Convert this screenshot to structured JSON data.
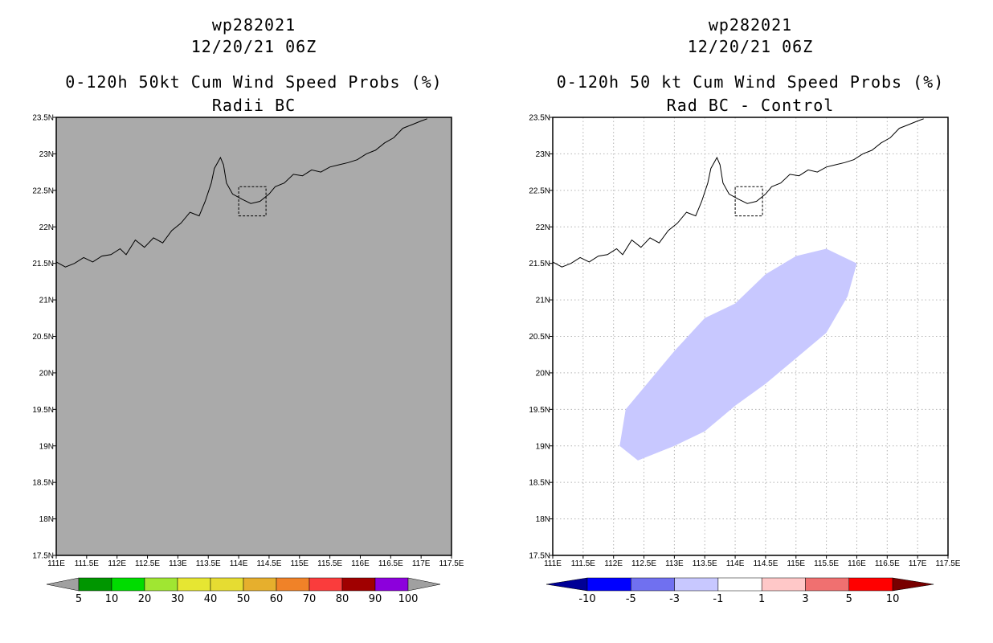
{
  "left_panel": {
    "title_storm": "wp282021",
    "title_date": "12/20/21 06Z",
    "title_product": "0-120h 50kt Cum Wind Speed Probs (%)",
    "title_subtitle": "Radii BC",
    "colorbar": {
      "labels": [
        "5",
        "10",
        "20",
        "30",
        "40",
        "50",
        "60",
        "70",
        "80",
        "90",
        "100"
      ],
      "colors": [
        "#009600",
        "#00dc00",
        "#a0e632",
        "#e6e632",
        "#e6dc32",
        "#e6af2d",
        "#f08228",
        "#fa3c3c",
        "#a00000",
        "#8c00dc"
      ],
      "end_color": "#a0a0a0"
    }
  },
  "right_panel": {
    "title_storm": "wp282021",
    "title_date": "12/20/21 06Z",
    "title_product": "0-120h 50 kt Cum Wind Speed Probs (%)",
    "title_subtitle": "Rad BC - Control",
    "colorbar": {
      "labels": [
        "-10",
        "-5",
        "-3",
        "-1",
        "1",
        "3",
        "5",
        "10"
      ],
      "colors": [
        "#0000ff",
        "#7070f0",
        "#c8c8ff",
        "#ffffff",
        "#ffc8c8",
        "#f07070",
        "#ff0000"
      ],
      "low_color": "#000096",
      "high_color": "#780000"
    },
    "anomaly_field": {
      "color": "#c8c8ff",
      "value_range": "-3 to -1",
      "outline_lonlat": [
        [
          112.4,
          18.8
        ],
        [
          113.0,
          19.0
        ],
        [
          113.5,
          19.2
        ],
        [
          114.0,
          19.55
        ],
        [
          114.5,
          19.85
        ],
        [
          115.0,
          20.2
        ],
        [
          115.5,
          20.55
        ],
        [
          115.85,
          21.05
        ],
        [
          116.0,
          21.5
        ],
        [
          115.5,
          21.7
        ],
        [
          115.0,
          21.6
        ],
        [
          114.5,
          21.35
        ],
        [
          114.0,
          20.95
        ],
        [
          113.5,
          20.75
        ],
        [
          113.0,
          20.3
        ],
        [
          112.7,
          20.0
        ],
        [
          112.5,
          19.8
        ],
        [
          112.2,
          19.5
        ],
        [
          112.1,
          19.0
        ]
      ]
    }
  },
  "map": {
    "lon_labels": [
      "111E",
      "111.5E",
      "112E",
      "112.5E",
      "113E",
      "113.5E",
      "114E",
      "114.5E",
      "115E",
      "115.5E",
      "116E",
      "116.5E",
      "117E",
      "117.5E"
    ],
    "lat_labels": [
      "23.5N",
      "23N",
      "22.5N",
      "22N",
      "21.5N",
      "21N",
      "20.5N",
      "20N",
      "19.5N",
      "19N",
      "18.5N",
      "18N",
      "17.5N"
    ],
    "lon_range": [
      111,
      117.5
    ],
    "lat_range": [
      17.5,
      23.5
    ],
    "missing_fill_color": "#aaaaaa",
    "coastline_lonlat": [
      [
        111.0,
        21.52
      ],
      [
        111.15,
        21.45
      ],
      [
        111.3,
        21.5
      ],
      [
        111.45,
        21.58
      ],
      [
        111.6,
        21.52
      ],
      [
        111.75,
        21.6
      ],
      [
        111.9,
        21.62
      ],
      [
        112.05,
        21.7
      ],
      [
        112.15,
        21.62
      ],
      [
        112.3,
        21.82
      ],
      [
        112.45,
        21.72
      ],
      [
        112.6,
        21.85
      ],
      [
        112.75,
        21.78
      ],
      [
        112.9,
        21.95
      ],
      [
        113.05,
        22.05
      ],
      [
        113.2,
        22.2
      ],
      [
        113.35,
        22.15
      ],
      [
        113.45,
        22.35
      ],
      [
        113.55,
        22.6
      ],
      [
        113.6,
        22.8
      ],
      [
        113.7,
        22.95
      ],
      [
        113.75,
        22.85
      ],
      [
        113.8,
        22.6
      ],
      [
        113.9,
        22.45
      ],
      [
        114.05,
        22.38
      ],
      [
        114.2,
        22.32
      ],
      [
        114.35,
        22.35
      ],
      [
        114.5,
        22.45
      ],
      [
        114.6,
        22.55
      ],
      [
        114.75,
        22.6
      ],
      [
        114.9,
        22.72
      ],
      [
        115.05,
        22.7
      ],
      [
        115.2,
        22.78
      ],
      [
        115.35,
        22.75
      ],
      [
        115.5,
        22.82
      ],
      [
        115.65,
        22.85
      ],
      [
        115.8,
        22.88
      ],
      [
        115.95,
        22.92
      ],
      [
        116.1,
        23.0
      ],
      [
        116.25,
        23.05
      ],
      [
        116.4,
        23.15
      ],
      [
        116.55,
        23.22
      ],
      [
        116.7,
        23.35
      ],
      [
        116.85,
        23.4
      ],
      [
        117.0,
        23.45
      ],
      [
        117.1,
        23.48
      ]
    ],
    "hk_box_lonlat": [
      [
        114.0,
        22.15
      ],
      [
        114.45,
        22.15
      ],
      [
        114.45,
        22.55
      ],
      [
        114.0,
        22.55
      ],
      [
        114.0,
        22.15
      ]
    ]
  }
}
